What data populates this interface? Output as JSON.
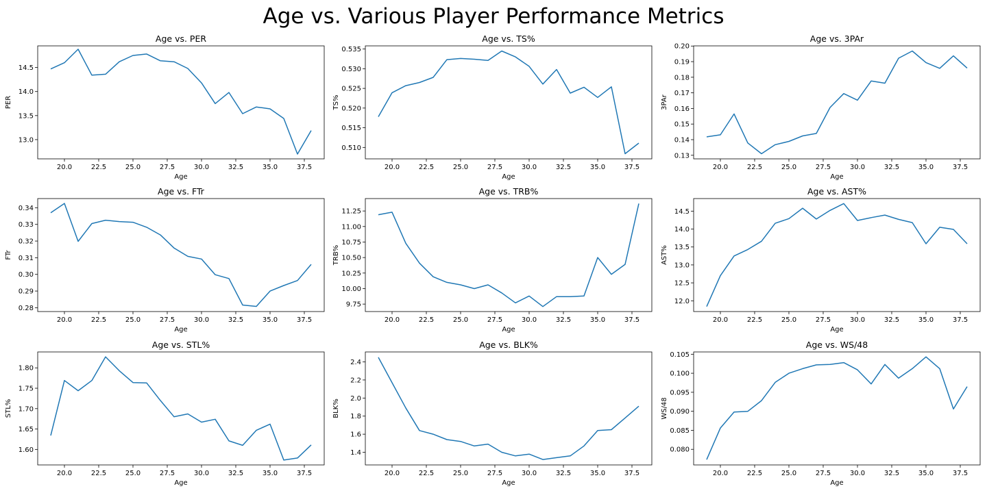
{
  "title": "Age vs. Various Player Performance Metrics",
  "line_color": "#1f77b4",
  "chart_data": [
    {
      "type": "line",
      "title": "Age vs. PER",
      "xlabel": "Age",
      "ylabel": "PER",
      "x": [
        19,
        20,
        21,
        22,
        23,
        24,
        25,
        26,
        27,
        28,
        29,
        30,
        31,
        32,
        33,
        34,
        35,
        36,
        37,
        38
      ],
      "values": [
        14.47,
        14.6,
        14.88,
        14.34,
        14.36,
        14.62,
        14.75,
        14.78,
        14.64,
        14.62,
        14.48,
        14.18,
        13.75,
        13.98,
        13.54,
        13.68,
        13.64,
        13.44,
        12.7,
        13.19
      ],
      "ylim": [
        12.6,
        14.95
      ],
      "yticks": [
        13.0,
        13.5,
        14.0,
        14.5
      ],
      "ytick_labels": [
        "13.0",
        "13.5",
        "14.0",
        "14.5"
      ],
      "xlim": [
        18.05,
        38.95
      ],
      "xticks": [
        20.0,
        22.5,
        25.0,
        27.5,
        30.0,
        32.5,
        35.0,
        37.5
      ],
      "xtick_labels": [
        "20.0",
        "22.5",
        "25.0",
        "27.5",
        "30.0",
        "32.5",
        "35.0",
        "37.5"
      ]
    },
    {
      "type": "line",
      "title": "Age vs. TS%",
      "xlabel": "Age",
      "ylabel": "TS%",
      "x": [
        19,
        20,
        21,
        22,
        23,
        24,
        25,
        26,
        27,
        28,
        29,
        30,
        31,
        32,
        33,
        34,
        35,
        36,
        37,
        38
      ],
      "values": [
        0.5178,
        0.5239,
        0.5257,
        0.5265,
        0.5278,
        0.5323,
        0.5326,
        0.5324,
        0.5321,
        0.5345,
        0.533,
        0.5306,
        0.5261,
        0.5298,
        0.5238,
        0.5253,
        0.5227,
        0.5254,
        0.5084,
        0.5111
      ],
      "ylim": [
        0.5071,
        0.5358
      ],
      "yticks": [
        0.51,
        0.515,
        0.52,
        0.525,
        0.53,
        0.535
      ],
      "ytick_labels": [
        "0.510",
        "0.515",
        "0.520",
        "0.525",
        "0.530",
        "0.535"
      ],
      "xlim": [
        18.05,
        38.95
      ],
      "xticks": [
        20.0,
        22.5,
        25.0,
        27.5,
        30.0,
        32.5,
        35.0,
        37.5
      ],
      "xtick_labels": [
        "20.0",
        "22.5",
        "25.0",
        "27.5",
        "30.0",
        "32.5",
        "35.0",
        "37.5"
      ]
    },
    {
      "type": "line",
      "title": "Age vs. 3PAr",
      "xlabel": "Age",
      "ylabel": "3PAr",
      "x": [
        19,
        20,
        21,
        22,
        23,
        24,
        25,
        26,
        27,
        28,
        29,
        30,
        31,
        32,
        33,
        34,
        35,
        36,
        37,
        38
      ],
      "values": [
        0.1418,
        0.1431,
        0.1565,
        0.1379,
        0.131,
        0.1368,
        0.1389,
        0.1424,
        0.144,
        0.1606,
        0.1695,
        0.1653,
        0.1776,
        0.1762,
        0.1922,
        0.1968,
        0.1894,
        0.1857,
        0.1937,
        0.1859
      ],
      "ylim": [
        0.1277,
        0.2001
      ],
      "yticks": [
        0.13,
        0.14,
        0.15,
        0.16,
        0.17,
        0.18,
        0.19,
        0.2
      ],
      "ytick_labels": [
        "0.13",
        "0.14",
        "0.15",
        "0.16",
        "0.17",
        "0.18",
        "0.19",
        "0.20"
      ],
      "xlim": [
        18.05,
        38.95
      ],
      "xticks": [
        20.0,
        22.5,
        25.0,
        27.5,
        30.0,
        32.5,
        35.0,
        37.5
      ],
      "xtick_labels": [
        "20.0",
        "22.5",
        "25.0",
        "27.5",
        "30.0",
        "32.5",
        "35.0",
        "37.5"
      ]
    },
    {
      "type": "line",
      "title": "Age vs. FTr",
      "xlabel": "Age",
      "ylabel": "FTr",
      "x": [
        19,
        20,
        21,
        22,
        23,
        24,
        25,
        26,
        27,
        28,
        29,
        30,
        31,
        32,
        33,
        34,
        35,
        36,
        37,
        38
      ],
      "values": [
        0.337,
        0.3426,
        0.3198,
        0.3305,
        0.3325,
        0.3317,
        0.3313,
        0.3283,
        0.3237,
        0.3158,
        0.3108,
        0.3092,
        0.2998,
        0.2975,
        0.2816,
        0.2808,
        0.29,
        0.2933,
        0.2963,
        0.306
      ],
      "ylim": [
        0.2777,
        0.3455
      ],
      "yticks": [
        0.28,
        0.29,
        0.3,
        0.31,
        0.32,
        0.33,
        0.34
      ],
      "ytick_labels": [
        "0.28",
        "0.29",
        "0.30",
        "0.31",
        "0.32",
        "0.33",
        "0.34"
      ],
      "xlim": [
        18.05,
        38.95
      ],
      "xticks": [
        20.0,
        22.5,
        25.0,
        27.5,
        30.0,
        32.5,
        35.0,
        37.5
      ],
      "xtick_labels": [
        "20.0",
        "22.5",
        "25.0",
        "27.5",
        "30.0",
        "32.5",
        "35.0",
        "37.5"
      ]
    },
    {
      "type": "line",
      "title": "Age vs. TRB%",
      "xlabel": "Age",
      "ylabel": "TRB%",
      "x": [
        19,
        20,
        21,
        22,
        23,
        24,
        25,
        26,
        27,
        28,
        29,
        30,
        31,
        32,
        33,
        34,
        35,
        36,
        37,
        38
      ],
      "values": [
        11.19,
        11.23,
        10.73,
        10.41,
        10.19,
        10.1,
        10.06,
        10.0,
        10.06,
        9.93,
        9.77,
        9.88,
        9.71,
        9.87,
        9.87,
        9.88,
        10.5,
        10.23,
        10.39,
        11.37
      ],
      "ylim": [
        9.63,
        11.45
      ],
      "yticks": [
        9.75,
        10.0,
        10.25,
        10.5,
        10.75,
        11.0,
        11.25
      ],
      "ytick_labels": [
        "9.75",
        "10.00",
        "10.25",
        "10.50",
        "10.75",
        "11.00",
        "11.25"
      ],
      "xlim": [
        18.05,
        38.95
      ],
      "xticks": [
        20.0,
        22.5,
        25.0,
        27.5,
        30.0,
        32.5,
        35.0,
        37.5
      ],
      "xtick_labels": [
        "20.0",
        "22.5",
        "25.0",
        "27.5",
        "30.0",
        "32.5",
        "35.0",
        "37.5"
      ]
    },
    {
      "type": "line",
      "title": "Age vs. AST%",
      "xlabel": "Age",
      "ylabel": "AST%",
      "x": [
        19,
        20,
        21,
        22,
        23,
        24,
        25,
        26,
        27,
        28,
        29,
        30,
        31,
        32,
        33,
        34,
        35,
        36,
        37,
        38
      ],
      "values": [
        11.84,
        12.7,
        13.25,
        13.43,
        13.66,
        14.16,
        14.29,
        14.58,
        14.28,
        14.52,
        14.71,
        14.24,
        14.32,
        14.39,
        14.27,
        14.18,
        13.59,
        14.05,
        13.99,
        13.59
      ],
      "ylim": [
        11.7,
        14.85
      ],
      "yticks": [
        12.0,
        12.5,
        13.0,
        13.5,
        14.0,
        14.5
      ],
      "ytick_labels": [
        "12.0",
        "12.5",
        "13.0",
        "13.5",
        "14.0",
        "14.5"
      ],
      "xlim": [
        18.05,
        38.95
      ],
      "xticks": [
        20.0,
        22.5,
        25.0,
        27.5,
        30.0,
        32.5,
        35.0,
        37.5
      ],
      "xtick_labels": [
        "20.0",
        "22.5",
        "25.0",
        "27.5",
        "30.0",
        "32.5",
        "35.0",
        "37.5"
      ]
    },
    {
      "type": "line",
      "title": "Age vs. STL%",
      "xlabel": "Age",
      "ylabel": "STL%",
      "x": [
        19,
        20,
        21,
        22,
        23,
        24,
        25,
        26,
        27,
        28,
        29,
        30,
        31,
        32,
        33,
        34,
        35,
        36,
        37,
        38
      ],
      "values": [
        1.634,
        1.769,
        1.744,
        1.769,
        1.827,
        1.793,
        1.764,
        1.763,
        1.72,
        1.68,
        1.687,
        1.667,
        1.674,
        1.621,
        1.61,
        1.647,
        1.662,
        1.574,
        1.579,
        1.611
      ],
      "ylim": [
        1.562,
        1.839
      ],
      "yticks": [
        1.6,
        1.65,
        1.7,
        1.75,
        1.8
      ],
      "ytick_labels": [
        "1.60",
        "1.65",
        "1.70",
        "1.75",
        "1.80"
      ],
      "xlim": [
        18.05,
        38.95
      ],
      "xticks": [
        20.0,
        22.5,
        25.0,
        27.5,
        30.0,
        32.5,
        35.0,
        37.5
      ],
      "xtick_labels": [
        "20.0",
        "22.5",
        "25.0",
        "27.5",
        "30.0",
        "32.5",
        "35.0",
        "37.5"
      ]
    },
    {
      "type": "line",
      "title": "Age vs. BLK%",
      "xlabel": "Age",
      "ylabel": "BLK%",
      "x": [
        19,
        20,
        21,
        22,
        23,
        24,
        25,
        26,
        27,
        28,
        29,
        30,
        31,
        32,
        33,
        34,
        35,
        36,
        37,
        38
      ],
      "values": [
        2.45,
        2.17,
        1.89,
        1.64,
        1.6,
        1.54,
        1.52,
        1.47,
        1.49,
        1.4,
        1.36,
        1.38,
        1.32,
        1.34,
        1.36,
        1.47,
        1.64,
        1.65,
        1.78,
        1.91
      ],
      "ylim": [
        1.26,
        2.51
      ],
      "yticks": [
        1.4,
        1.6,
        1.8,
        2.0,
        2.2,
        2.4
      ],
      "ytick_labels": [
        "1.4",
        "1.6",
        "1.8",
        "2.0",
        "2.2",
        "2.4"
      ],
      "xlim": [
        18.05,
        38.95
      ],
      "xticks": [
        20.0,
        22.5,
        25.0,
        27.5,
        30.0,
        32.5,
        35.0,
        37.5
      ],
      "xtick_labels": [
        "20.0",
        "22.5",
        "25.0",
        "27.5",
        "30.0",
        "32.5",
        "35.0",
        "37.5"
      ]
    },
    {
      "type": "line",
      "title": "Age vs. WS/48",
      "xlabel": "Age",
      "ylabel": "WS/48",
      "x": [
        19,
        20,
        21,
        22,
        23,
        24,
        25,
        26,
        27,
        28,
        29,
        30,
        31,
        32,
        33,
        34,
        35,
        36,
        37,
        38
      ],
      "values": [
        0.0773,
        0.0856,
        0.0898,
        0.09,
        0.0928,
        0.0976,
        0.1,
        0.1012,
        0.1022,
        0.1023,
        0.1028,
        0.1009,
        0.0972,
        0.1023,
        0.0987,
        0.1012,
        0.1043,
        0.1012,
        0.0906,
        0.0965
      ],
      "ylim": [
        0.0759,
        0.1056
      ],
      "yticks": [
        0.08,
        0.085,
        0.09,
        0.095,
        0.1,
        0.105
      ],
      "ytick_labels": [
        "0.080",
        "0.085",
        "0.090",
        "0.095",
        "0.100",
        "0.105"
      ],
      "xlim": [
        18.05,
        38.95
      ],
      "xticks": [
        20.0,
        22.5,
        25.0,
        27.5,
        30.0,
        32.5,
        35.0,
        37.5
      ],
      "xtick_labels": [
        "20.0",
        "22.5",
        "25.0",
        "27.5",
        "30.0",
        "32.5",
        "35.0",
        "37.5"
      ]
    }
  ]
}
